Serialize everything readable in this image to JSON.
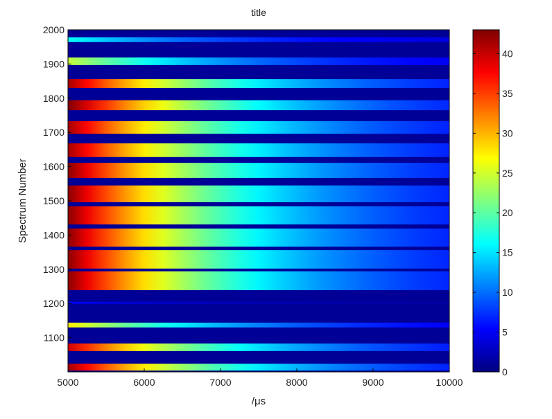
{
  "chart_data": {
    "type": "heatmap",
    "title": "title",
    "xlabel": "/μs",
    "ylabel": "Spectrum Number",
    "xlim": [
      5000,
      10000
    ],
    "ylim": [
      1000,
      2000
    ],
    "xticks": [
      5000,
      6000,
      7000,
      8000,
      9000,
      10000
    ],
    "yticks": [
      1100,
      1200,
      1300,
      1400,
      1500,
      1600,
      1700,
      1800,
      1900,
      2000
    ],
    "colormap": "jet",
    "clim": [
      0,
      43
    ],
    "colorbar_ticks": [
      0,
      5,
      10,
      15,
      20,
      25,
      30,
      35,
      40
    ],
    "background_value": 1,
    "decay_time_us": 2270,
    "description_of_values": "each band: spectrum range [from,to], intensity at 5000 us decaying exponentially",
    "bands": [
      {
        "from": 1964,
        "to": 1978,
        "peak": 15
      },
      {
        "from": 1897,
        "to": 1919,
        "peak": 23
      },
      {
        "from": 1830,
        "to": 1856,
        "peak": 40
      },
      {
        "from": 1765,
        "to": 1794,
        "peak": 42
      },
      {
        "from": 1696,
        "to": 1733,
        "peak": 40
      },
      {
        "from": 1628,
        "to": 1668,
        "peak": 40
      },
      {
        "from": 1567,
        "to": 1611,
        "peak": 41
      },
      {
        "from": 1496,
        "to": 1545,
        "peak": 41
      },
      {
        "from": 1431,
        "to": 1484,
        "peak": 41
      },
      {
        "from": 1366,
        "to": 1419,
        "peak": 41
      },
      {
        "from": 1302,
        "to": 1356,
        "peak": 41
      },
      {
        "from": 1239,
        "to": 1294,
        "peak": 41
      },
      {
        "from": 1199,
        "to": 1205,
        "peak": 5
      },
      {
        "from": 1130,
        "to": 1144,
        "peak": 26
      },
      {
        "from": 1061,
        "to": 1083,
        "peak": 38
      },
      {
        "from": 1004,
        "to": 1024,
        "peak": 40
      }
    ]
  }
}
